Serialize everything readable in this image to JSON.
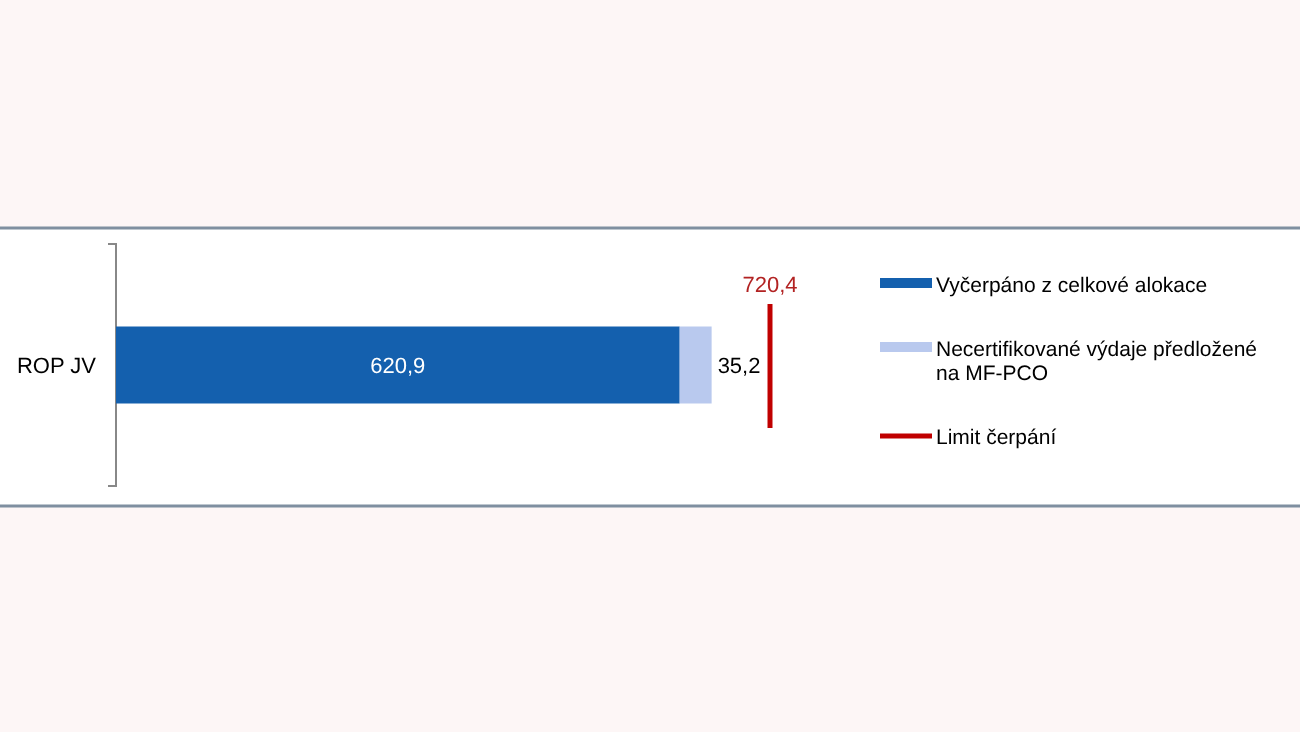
{
  "chart_data": {
    "type": "bar",
    "orientation": "horizontal",
    "stacked": true,
    "categories": [
      "ROP JV"
    ],
    "series": [
      {
        "name": "Vyčerpáno z celkové alokace",
        "color": "#1460ae",
        "values": [
          620.9
        ],
        "value_labels": [
          "620,9"
        ]
      },
      {
        "name": "Necertifikované výdaje předložené na MF-PCO",
        "color": "#b9c9ee",
        "values": [
          35.2
        ],
        "value_labels": [
          "35,2"
        ]
      }
    ],
    "ref_lines": [
      {
        "axis": "x",
        "value": 720.4,
        "label": "720,4",
        "color": "#c00000"
      }
    ],
    "annotations": [
      "Limit čerpání"
    ],
    "legend": "right"
  }
}
